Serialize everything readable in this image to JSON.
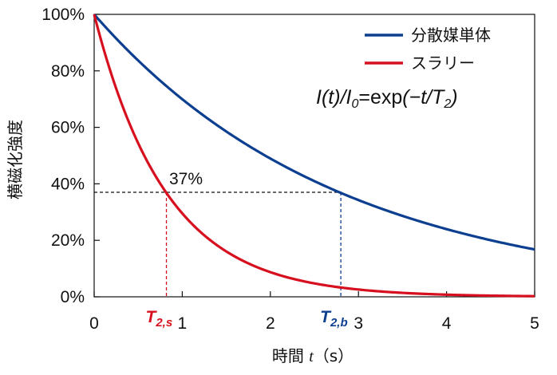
{
  "chart_data": {
    "type": "line",
    "xlabel_text": "時間 ",
    "xlabel_var": "t",
    "xlabel_unit": "（s）",
    "ylabel": "横磁化強度",
    "x_ticks": [
      "0",
      "1",
      "2",
      "3",
      "4",
      "5"
    ],
    "y_ticks": [
      "0%",
      "20%",
      "40%",
      "60%",
      "80%",
      "100%"
    ],
    "xlim": [
      0,
      5
    ],
    "ylim": [
      0,
      100
    ],
    "legend_placement": "top-right",
    "series": [
      {
        "name": "分散媒単体",
        "color": "#0d3f91",
        "T2": 2.8,
        "x": [
          0,
          0.5,
          1,
          1.5,
          2,
          2.5,
          3,
          3.5,
          4,
          4.5,
          5
        ],
        "y": [
          100,
          83.6,
          69.9,
          58.5,
          48.9,
          40.9,
          34.2,
          28.7,
          23.9,
          20.1,
          16.8
        ]
      },
      {
        "name": "スラリー",
        "color": "#d7101f",
        "T2": 0.82,
        "x": [
          0,
          0.25,
          0.5,
          0.75,
          1,
          1.25,
          1.5,
          2,
          2.5,
          3,
          3.5,
          4,
          4.5,
          5
        ],
        "y": [
          100,
          73.7,
          54.4,
          40.0,
          29.5,
          21.7,
          16.0,
          8.7,
          4.7,
          2.6,
          1.4,
          0.8,
          0.4,
          0.2
        ]
      }
    ],
    "formula": {
      "I": "I",
      "t1": "(t)/",
      "I0": "I",
      "sub0": "0",
      "eq": "=exp",
      "neg": "(−t/",
      "T": "T",
      "sub2": "2",
      "close": ")"
    },
    "reference": {
      "level": 37,
      "label": "37%",
      "ts_value": 0.82,
      "tb_value": 2.8,
      "ts_label_main": "T",
      "ts_label_sub": "2,s",
      "tb_label_main": "T",
      "tb_label_sub": "2,b"
    },
    "grid": false
  }
}
